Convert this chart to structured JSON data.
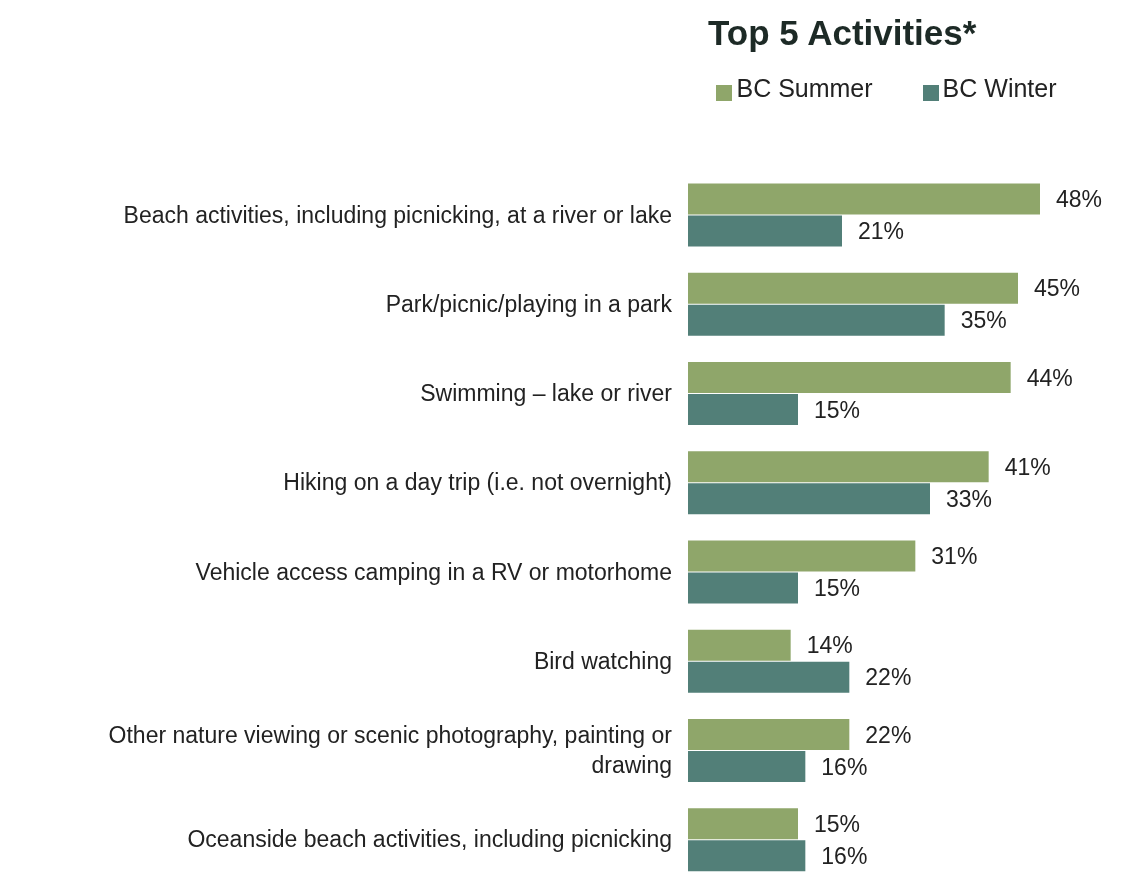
{
  "chart_data": {
    "type": "bar",
    "orientation": "horizontal",
    "title": "Top 5 Activities*",
    "categories": [
      "Beach activities, including picnicking, at a river or lake",
      "Park/picnic/playing in a park",
      "Swimming – lake or river",
      "Hiking on a day trip (i.e. not overnight)",
      "Vehicle access camping in a RV or motorhome",
      "Bird watching",
      "Other nature viewing or scenic photography, painting or drawing",
      "Oceanside beach activities, including picnicking"
    ],
    "series": [
      {
        "name": "BC Summer",
        "color": "#8fa66a",
        "values": [
          48,
          45,
          44,
          41,
          31,
          14,
          22,
          15
        ],
        "value_labels": [
          "48%",
          "45%",
          "44%",
          "41%",
          "31%",
          "14%",
          "22%",
          "15%"
        ]
      },
      {
        "name": "BC Winter",
        "color": "#527f78",
        "values": [
          21,
          35,
          15,
          33,
          15,
          22,
          16,
          16
        ],
        "value_labels": [
          "21%",
          "35%",
          "15%",
          "33%",
          "15%",
          "22%",
          "16%",
          "16%"
        ]
      }
    ],
    "legend": "top"
  }
}
